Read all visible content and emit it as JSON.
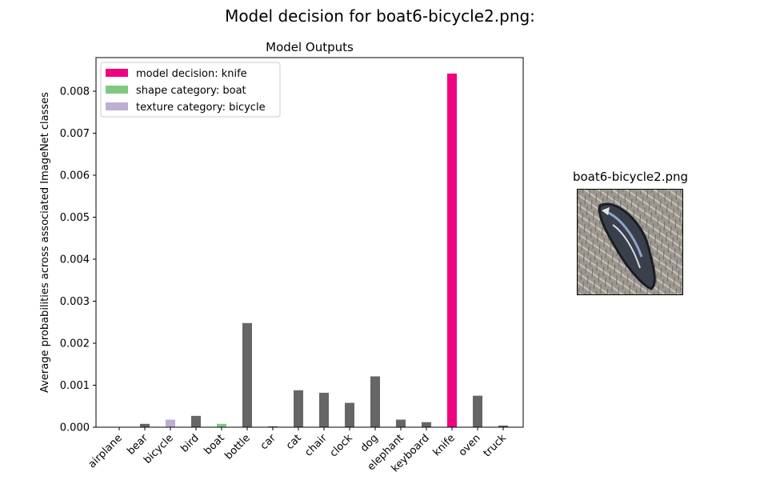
{
  "figure": {
    "suptitle": "Model decision for boat6-bicycle2.png:"
  },
  "thumbnail": {
    "title": "boat6-bicycle2.png",
    "icon": "stylized-fish-texture-image"
  },
  "colors": {
    "model_decision": "#f0027f",
    "shape_category": "#7fc97f",
    "texture_category": "#beaed4",
    "other": "#666666"
  },
  "chart_data": {
    "type": "bar",
    "title": "Model Outputs",
    "xlabel": "",
    "ylabel": "Average probabilities across associated ImageNet classes",
    "ylim": [
      0,
      0.0088
    ],
    "yticks": [
      "0.000",
      "0.001",
      "0.002",
      "0.003",
      "0.004",
      "0.005",
      "0.006",
      "0.007",
      "0.008"
    ],
    "grid": false,
    "legend_position": "top-left",
    "legend": [
      {
        "label": "model decision: knife",
        "role": "model_decision"
      },
      {
        "label": "shape category: boat",
        "role": "shape_category"
      },
      {
        "label": "texture category: bicycle",
        "role": "texture_category"
      }
    ],
    "categories": [
      "airplane",
      "bear",
      "bicycle",
      "bird",
      "boat",
      "bottle",
      "car",
      "cat",
      "chair",
      "clock",
      "dog",
      "elephant",
      "keyboard",
      "knife",
      "oven",
      "truck"
    ],
    "values": [
      5e-06,
      8e-05,
      0.00018,
      0.00027,
      8e-05,
      0.00248,
      2e-05,
      0.00088,
      0.00082,
      0.00058,
      0.00121,
      0.00018,
      0.00012,
      0.00842,
      0.00075,
      4e-05
    ],
    "roles": [
      "other",
      "other",
      "texture_category",
      "other",
      "shape_category",
      "other",
      "other",
      "other",
      "other",
      "other",
      "other",
      "other",
      "other",
      "model_decision",
      "other",
      "other"
    ]
  }
}
